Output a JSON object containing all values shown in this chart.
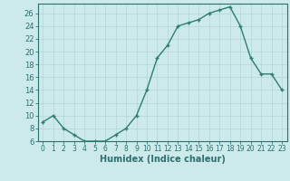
{
  "x": [
    0,
    1,
    2,
    3,
    4,
    5,
    6,
    7,
    8,
    9,
    10,
    11,
    12,
    13,
    14,
    15,
    16,
    17,
    18,
    19,
    20,
    21,
    22,
    23
  ],
  "y": [
    9,
    10,
    8,
    7,
    6,
    6,
    6,
    7,
    8,
    10,
    14,
    19,
    21,
    24,
    24.5,
    25,
    26,
    26.5,
    27,
    24,
    19,
    16.5,
    16.5,
    14
  ],
  "line_color": "#2e7d6e",
  "marker_color": "#2e7d6e",
  "bg_color": "#cceaea",
  "grid_color": "#b8d8d8",
  "xlabel": "Humidex (Indice chaleur)",
  "ylim": [
    6,
    27.5
  ],
  "xlim": [
    -0.5,
    23.5
  ],
  "yticks": [
    6,
    8,
    10,
    12,
    14,
    16,
    18,
    20,
    22,
    24,
    26
  ],
  "xticks": [
    0,
    1,
    2,
    3,
    4,
    5,
    6,
    7,
    8,
    9,
    10,
    11,
    12,
    13,
    14,
    15,
    16,
    17,
    18,
    19,
    20,
    21,
    22,
    23
  ],
  "font_color": "#2e6e6e",
  "tick_fontsize": 5.5,
  "xlabel_fontsize": 7,
  "marker_size": 2.5,
  "line_width": 1.0
}
